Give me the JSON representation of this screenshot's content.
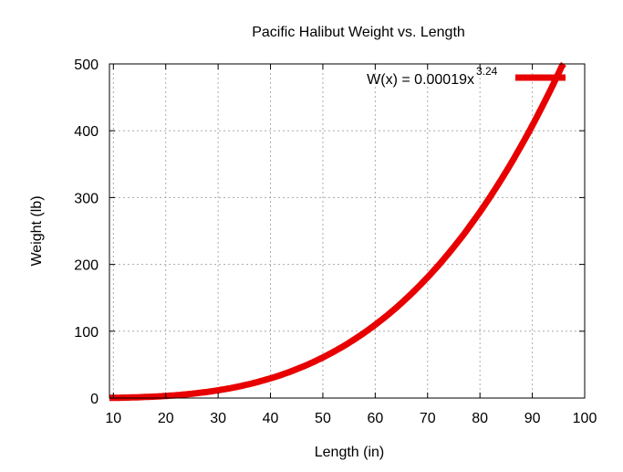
{
  "chart_data": {
    "type": "line",
    "title": "Pacific Halibut Weight vs. Length",
    "xlabel": "Length (in)",
    "ylabel": "Weight (lb)",
    "xlim": [
      9.25,
      100
    ],
    "ylim": [
      0,
      500
    ],
    "xticks": [
      "10",
      "20",
      "30",
      "40",
      "50",
      "60",
      "70",
      "80",
      "90",
      "100"
    ],
    "yticks": [
      "0",
      "100",
      "200",
      "300",
      "400",
      "500"
    ],
    "grid": true,
    "legend": {
      "position": "top-right",
      "label_main": "W(x) = 0.00019x",
      "label_exp": "3.24"
    },
    "series": [
      {
        "name": "W(x) = 0.00019x^3.24",
        "coefficient": 0.00019,
        "exponent": 3.24,
        "x_range": [
          9.25,
          96
        ],
        "color": "#e80000"
      }
    ]
  }
}
